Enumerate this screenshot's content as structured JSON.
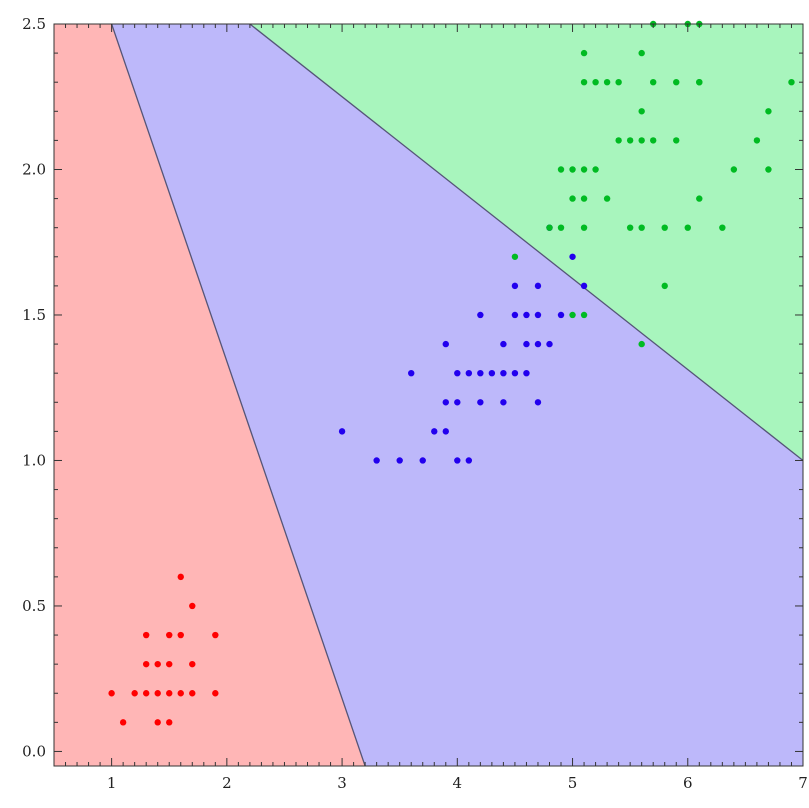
{
  "chart_data": {
    "type": "scatter",
    "title": "",
    "xlabel": "",
    "ylabel": "",
    "xlim": [
      0.5,
      7.0
    ],
    "ylim": [
      -0.05,
      2.5
    ],
    "grid": false,
    "legend": "none",
    "x_ticks": [
      "1",
      "2",
      "3",
      "4",
      "5",
      "6",
      "7"
    ],
    "y_ticks": [
      "0.0",
      "0.5",
      "1.0",
      "1.5",
      "2.0",
      "2.5"
    ],
    "regions": [
      {
        "class": "red",
        "fill": "#ffb6b6",
        "polygon": [
          [
            0.5,
            -0.05
          ],
          [
            0.5,
            2.5
          ],
          [
            1.0,
            2.5
          ],
          [
            3.2,
            -0.05
          ]
        ]
      },
      {
        "class": "blue",
        "fill": "#bdb8fa",
        "polygon": [
          [
            1.0,
            2.5
          ],
          [
            3.2,
            -0.05
          ],
          [
            7.0,
            -0.05
          ],
          [
            7.0,
            1.0
          ],
          [
            2.2,
            2.5
          ]
        ]
      },
      {
        "class": "green",
        "fill": "#a8f5bd",
        "polygon": [
          [
            2.2,
            2.5
          ],
          [
            7.0,
            2.5
          ],
          [
            7.0,
            1.0
          ]
        ]
      }
    ],
    "boundaries": [
      {
        "from": [
          1.0,
          2.5
        ],
        "to": [
          3.2,
          -0.05
        ]
      },
      {
        "from": [
          2.2,
          2.5
        ],
        "to": [
          7.0,
          1.0
        ]
      }
    ],
    "series": [
      {
        "color": "#ff0000",
        "x": [
          1.1,
          1.0,
          1.2,
          1.3,
          1.4,
          1.5,
          1.6,
          1.7,
          1.9,
          1.3,
          1.4,
          1.5,
          1.7,
          1.3,
          1.5,
          1.6,
          1.9,
          1.7,
          1.6,
          1.4,
          1.5
        ],
        "y": [
          0.1,
          0.2,
          0.2,
          0.2,
          0.2,
          0.2,
          0.2,
          0.2,
          0.2,
          0.3,
          0.3,
          0.3,
          0.3,
          0.4,
          0.4,
          0.4,
          0.4,
          0.5,
          0.6,
          0.1,
          0.1
        ]
      },
      {
        "color": "#2200ee",
        "x": [
          3.0,
          3.3,
          3.5,
          3.7,
          4.0,
          4.1,
          3.8,
          3.9,
          3.9,
          4.0,
          4.2,
          4.4,
          4.7,
          3.6,
          4.0,
          4.1,
          4.2,
          4.3,
          4.4,
          4.5,
          4.6,
          3.9,
          4.4,
          4.6,
          4.7,
          4.8,
          4.2,
          4.5,
          4.6,
          4.7,
          4.9,
          4.5,
          4.7,
          5.1,
          5.0,
          4.8
        ],
        "y": [
          1.1,
          1.0,
          1.0,
          1.0,
          1.0,
          1.0,
          1.1,
          1.1,
          1.2,
          1.2,
          1.2,
          1.2,
          1.2,
          1.3,
          1.3,
          1.3,
          1.3,
          1.3,
          1.3,
          1.3,
          1.3,
          1.4,
          1.4,
          1.4,
          1.4,
          1.4,
          1.5,
          1.5,
          1.5,
          1.5,
          1.5,
          1.6,
          1.6,
          1.6,
          1.7,
          1.8
        ]
      },
      {
        "color": "#00bb22",
        "x": [
          4.5,
          5.0,
          5.1,
          5.6,
          4.9,
          5.1,
          5.5,
          5.6,
          5.8,
          6.0,
          6.3,
          4.8,
          5.0,
          5.1,
          5.3,
          6.1,
          4.9,
          5.0,
          5.1,
          5.2,
          6.4,
          6.7,
          5.4,
          5.5,
          5.6,
          5.7,
          5.9,
          6.6,
          5.6,
          6.1,
          6.7,
          5.1,
          5.2,
          5.3,
          5.4,
          5.7,
          5.9,
          6.1,
          6.9,
          5.1,
          5.6,
          6.0,
          6.1,
          5.7,
          5.8
        ],
        "y": [
          1.7,
          1.5,
          1.5,
          1.4,
          1.8,
          1.8,
          1.8,
          1.8,
          1.8,
          1.8,
          1.8,
          1.8,
          1.9,
          1.9,
          1.9,
          1.9,
          2.0,
          2.0,
          2.0,
          2.0,
          2.0,
          2.0,
          2.1,
          2.1,
          2.1,
          2.1,
          2.1,
          2.1,
          2.2,
          2.3,
          2.2,
          2.3,
          2.3,
          2.3,
          2.3,
          2.3,
          2.3,
          2.3,
          2.3,
          2.4,
          2.4,
          2.5,
          2.5,
          2.5,
          1.6
        ]
      }
    ]
  }
}
